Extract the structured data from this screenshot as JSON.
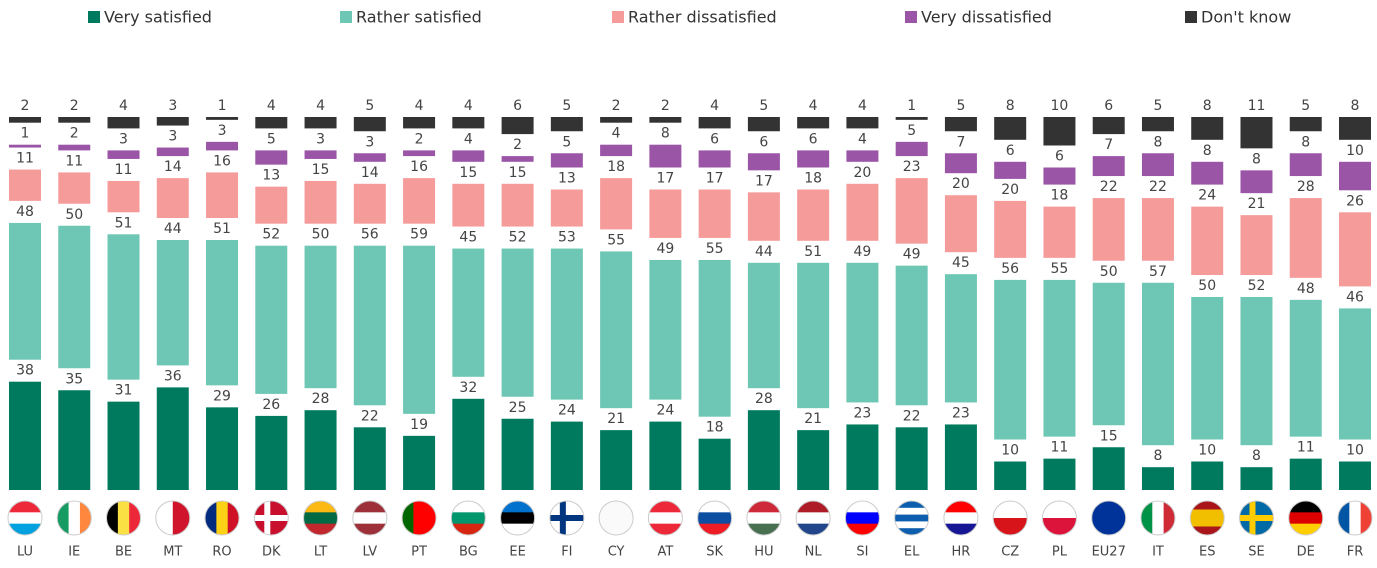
{
  "chart_data": {
    "type": "stacked_bar",
    "categories": [
      "LU",
      "IE",
      "BE",
      "MT",
      "RO",
      "DK",
      "LT",
      "LV",
      "PT",
      "BG",
      "EE",
      "FI",
      "CY",
      "AT",
      "SK",
      "HU",
      "NL",
      "SI",
      "EL",
      "HR",
      "CZ",
      "PL",
      "EU27",
      "IT",
      "ES",
      "SE",
      "DE",
      "FR"
    ],
    "series": [
      {
        "name": "Very satisfied",
        "color": "#007a5e",
        "values": [
          38,
          35,
          31,
          36,
          29,
          26,
          28,
          22,
          19,
          32,
          25,
          24,
          21,
          24,
          18,
          28,
          21,
          23,
          22,
          23,
          10,
          11,
          15,
          8,
          10,
          8,
          11,
          10
        ]
      },
      {
        "name": "Rather satisfied",
        "color": "#6dc7b4",
        "values": [
          48,
          50,
          51,
          44,
          51,
          52,
          50,
          56,
          59,
          45,
          52,
          53,
          55,
          49,
          55,
          44,
          51,
          49,
          49,
          45,
          56,
          55,
          50,
          57,
          50,
          52,
          48,
          46
        ]
      },
      {
        "name": "Rather dissatisfied",
        "color": "#f59c9b",
        "values": [
          11,
          11,
          11,
          14,
          16,
          13,
          15,
          14,
          16,
          15,
          15,
          13,
          18,
          17,
          17,
          17,
          18,
          20,
          23,
          20,
          20,
          18,
          22,
          22,
          24,
          21,
          28,
          26
        ]
      },
      {
        "name": "Very dissatisfied",
        "color": "#9b55a6",
        "values": [
          1,
          2,
          3,
          3,
          3,
          5,
          3,
          3,
          2,
          4,
          2,
          5,
          4,
          8,
          6,
          6,
          6,
          4,
          5,
          7,
          6,
          6,
          7,
          8,
          8,
          8,
          8,
          10
        ]
      },
      {
        "name": "Don't know",
        "color": "#333333",
        "values": [
          2,
          2,
          4,
          3,
          1,
          4,
          4,
          5,
          4,
          4,
          6,
          5,
          2,
          2,
          4,
          5,
          4,
          4,
          1,
          5,
          8,
          10,
          6,
          5,
          8,
          11,
          5,
          8
        ]
      }
    ]
  }
}
